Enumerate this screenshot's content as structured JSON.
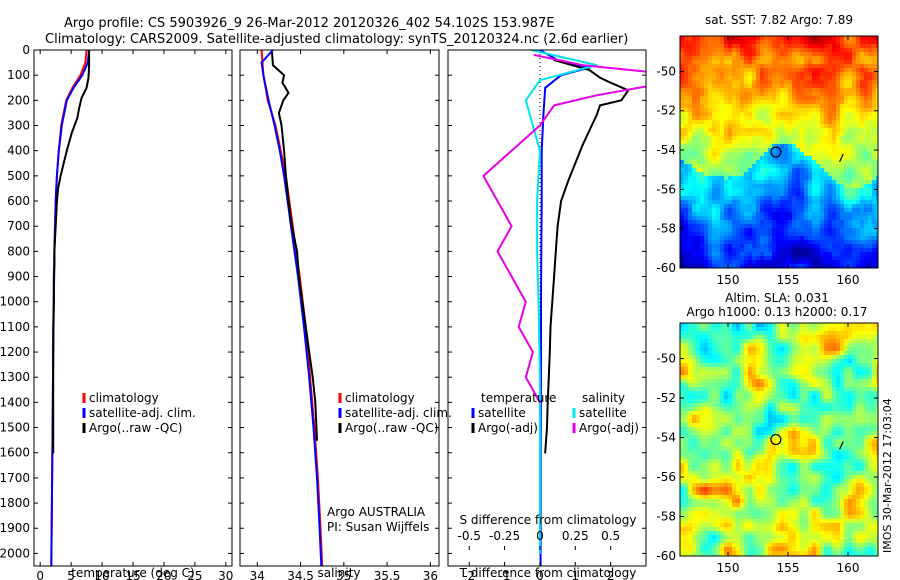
{
  "header": {
    "line1": "Argo profile: CS 5903926_9 26-Mar-2012 20120326_402 54.102S 153.987E",
    "line2": "Climatology: CARS2009. Satellite-adjusted climatology: synTS_20120324.nc (2.6d earlier)"
  },
  "side_label": "IMOS 30-Mar-2012 17:03:04",
  "colors": {
    "climatology": "#ff0000",
    "satellite": "#0000ff",
    "argo": "#000000",
    "sat_salinity": "#00e5e5",
    "argo_salinity": "#e600e6"
  },
  "chart_data": [
    {
      "type": "line",
      "id": "temperature",
      "xlabel": "temperature (deg C)",
      "xlim": [
        -1,
        31
      ],
      "ylim": [
        2050,
        0
      ],
      "xticks": [
        0,
        5,
        10,
        15,
        20,
        25,
        30
      ],
      "yticks": [
        0,
        100,
        200,
        300,
        400,
        500,
        600,
        700,
        800,
        900,
        1000,
        1100,
        1200,
        1300,
        1400,
        1500,
        1600,
        1700,
        1800,
        1900,
        2000
      ],
      "legend": [
        "climatology",
        "satellite-adj. clim.",
        "Argo(..raw -QC)"
      ],
      "series": [
        {
          "name": "climatology",
          "color": "#ff0000",
          "x": [
            7.5,
            7.3,
            6.5,
            5.2,
            4.2,
            3.4,
            3.0,
            2.7,
            2.5,
            2.4,
            2.3,
            2.2,
            2.1,
            2.0,
            1.9,
            1.8
          ],
          "y": [
            0,
            50,
            100,
            150,
            200,
            300,
            400,
            500,
            600,
            700,
            800,
            1000,
            1200,
            1500,
            1800,
            2050
          ]
        },
        {
          "name": "satellite-adj. clim.",
          "color": "#0000ff",
          "x": [
            7.9,
            7.7,
            6.8,
            5.4,
            4.3,
            3.5,
            3.0,
            2.7,
            2.5,
            2.4,
            2.3,
            2.2,
            2.1,
            2.0,
            1.9,
            1.8
          ],
          "y": [
            0,
            50,
            100,
            150,
            200,
            300,
            400,
            500,
            600,
            700,
            800,
            1000,
            1200,
            1500,
            1800,
            2050
          ]
        },
        {
          "name": "Argo(..raw -QC)",
          "color": "#000000",
          "x": [
            7.9,
            7.9,
            7.8,
            7.5,
            6.7,
            6.3,
            6.0,
            5.1,
            4.3,
            3.8,
            3.3,
            2.9,
            2.7,
            2.6,
            2.5,
            2.4,
            2.3,
            2.3,
            2.2,
            2.2,
            2.2,
            2.1,
            2.1,
            2.1,
            2.1,
            2.1,
            2.1
          ],
          "y": [
            5,
            60,
            110,
            150,
            190,
            230,
            270,
            330,
            400,
            450,
            500,
            550,
            600,
            650,
            700,
            750,
            800,
            850,
            900,
            950,
            1000,
            1100,
            1200,
            1300,
            1400,
            1500,
            1600
          ]
        }
      ],
      "annotations": []
    },
    {
      "type": "line",
      "id": "salinity",
      "xlabel": "salinity",
      "xlim": [
        33.8,
        36.1
      ],
      "ylim": [
        2050,
        0
      ],
      "xticks": [
        34,
        34.5,
        35,
        35.5,
        36
      ],
      "xtick_labels": [
        "34",
        "34.5",
        "35",
        "35.5",
        "36"
      ],
      "legend": [
        "climatology",
        "satellite-adj. clim.",
        "Argo(..raw -QC)"
      ],
      "series": [
        {
          "name": "climatology",
          "color": "#ff0000",
          "x": [
            34.05,
            34.06,
            34.07,
            34.12,
            34.21,
            34.27,
            34.33,
            34.37,
            34.41,
            34.45,
            34.49,
            34.56,
            34.61,
            34.66,
            34.7,
            34.73,
            34.75
          ],
          "y": [
            0,
            50,
            100,
            200,
            300,
            400,
            500,
            600,
            700,
            800,
            900,
            1100,
            1300,
            1500,
            1700,
            1900,
            2050
          ]
        },
        {
          "name": "satellite-adj. clim.",
          "color": "#0000ff",
          "x": [
            34.18,
            34.05,
            34.07,
            34.13,
            34.2,
            34.26,
            34.31,
            34.35,
            34.39,
            34.43,
            34.47,
            34.54,
            34.6,
            34.65,
            34.69,
            34.72,
            34.74
          ],
          "y": [
            0,
            50,
            100,
            200,
            300,
            400,
            500,
            600,
            700,
            800,
            900,
            1100,
            1300,
            1500,
            1700,
            1900,
            2050
          ]
        },
        {
          "name": "Argo(..raw -QC)",
          "color": "#000000",
          "x": [
            34.17,
            34.18,
            34.31,
            34.29,
            34.36,
            34.3,
            34.25,
            34.28,
            34.31,
            34.33,
            34.36,
            34.38,
            34.4,
            34.43,
            34.46,
            34.48,
            34.52,
            34.56,
            34.6,
            34.64,
            34.67,
            34.69
          ],
          "y": [
            10,
            60,
            100,
            130,
            170,
            200,
            250,
            300,
            400,
            500,
            600,
            650,
            700,
            750,
            800,
            900,
            1000,
            1100,
            1200,
            1300,
            1400,
            1550
          ]
        }
      ],
      "annotations": [
        "Argo AUSTRALIA",
        "PI: Susan Wijffels"
      ]
    },
    {
      "type": "line",
      "id": "differences",
      "xlabel": "T difference from climatology",
      "top_label": "S difference from climatology",
      "xlim": [
        -2.6,
        3.0
      ],
      "ylim": [
        2050,
        0
      ],
      "xticks": [
        -2,
        -1,
        0,
        1,
        2
      ],
      "top_ticks": [
        -0.5,
        -0.25,
        0,
        0.25,
        0.5
      ],
      "top_tick_labels": [
        "-0.5",
        "-0.25",
        "0",
        "0.25",
        "0.5"
      ],
      "legend_headers": [
        "temperature",
        "salinity"
      ],
      "legend": [
        "satellite",
        "Argo(-adj)",
        "satellite",
        "Argo(-adj)"
      ],
      "series": [
        {
          "name": "satellite",
          "color": "#0000ff",
          "group": "temperature",
          "x": [
            0.0,
            0.5,
            1.4,
            0.6,
            0.15,
            0.1,
            0.05,
            0.05,
            0.04,
            0.03,
            0.03,
            0.02,
            0.02,
            0.02
          ],
          "y": [
            0,
            40,
            70,
            100,
            150,
            250,
            400,
            600,
            800,
            1000,
            1300,
            1600,
            1900,
            2050
          ]
        },
        {
          "name": "Argo(-adj)",
          "color": "#000000",
          "group": "temperature",
          "x": [
            0.4,
            1.4,
            1.7,
            2.0,
            2.5,
            2.3,
            1.7,
            1.6,
            1.4,
            1.2,
            1.0,
            0.8,
            0.6,
            0.5,
            0.45,
            0.4,
            0.35,
            0.3,
            0.28,
            0.25,
            0.22,
            0.2,
            0.15
          ],
          "y": [
            40,
            80,
            110,
            130,
            160,
            200,
            220,
            260,
            320,
            380,
            450,
            520,
            600,
            700,
            800,
            900,
            1000,
            1100,
            1200,
            1300,
            1400,
            1500,
            1600
          ]
        },
        {
          "name": "satellite",
          "color": "#00e5e5",
          "group": "salinity",
          "x": [
            -0.06,
            0.4,
            0.0,
            -0.1,
            -0.05,
            0.0,
            -0.02,
            -0.02,
            -0.01,
            0.0,
            0.0,
            0.0
          ],
          "y": [
            0,
            60,
            120,
            200,
            300,
            400,
            600,
            800,
            1000,
            1300,
            1600,
            2000
          ]
        },
        {
          "name": "Argo(-adj)",
          "color": "#e600e6",
          "group": "salinity",
          "x": [
            -0.04,
            0.3,
            1.0,
            0.8,
            0.4,
            0.1,
            0.0,
            -0.2,
            -0.4,
            -0.3,
            -0.2,
            -0.3,
            -0.2,
            -0.1,
            -0.15,
            -0.05,
            -0.1,
            0.0
          ],
          "y": [
            20,
            60,
            100,
            140,
            180,
            220,
            300,
            400,
            500,
            600,
            700,
            800,
            900,
            1000,
            1100,
            1200,
            1300,
            1400
          ]
        }
      ],
      "annotations": []
    },
    {
      "type": "heatmap",
      "id": "sst_map",
      "title": "sat. SST: 7.82 Argo: 7.89",
      "xlim": [
        146,
        162.5
      ],
      "ylim": [
        -60,
        -48.2
      ],
      "xticks": [
        150,
        155,
        160
      ],
      "yticks": [
        -60,
        -58,
        -56,
        -54,
        -52,
        -50
      ],
      "colormap": "jet",
      "marker": {
        "lon": 153.987,
        "lat": -54.102
      },
      "annotations": []
    },
    {
      "type": "heatmap",
      "id": "sla_map",
      "title": "Altim. SLA: 0.031",
      "subtitle": "Argo h1000: 0.13 h2000: 0.17",
      "xlim": [
        146,
        162.5
      ],
      "ylim": [
        -60,
        -48.2
      ],
      "xticks": [
        150,
        155,
        160
      ],
      "yticks": [
        -60,
        -58,
        -56,
        -54,
        -52,
        -50
      ],
      "colormap": "jet",
      "marker": {
        "lon": 153.987,
        "lat": -54.102
      },
      "annotations": []
    }
  ]
}
